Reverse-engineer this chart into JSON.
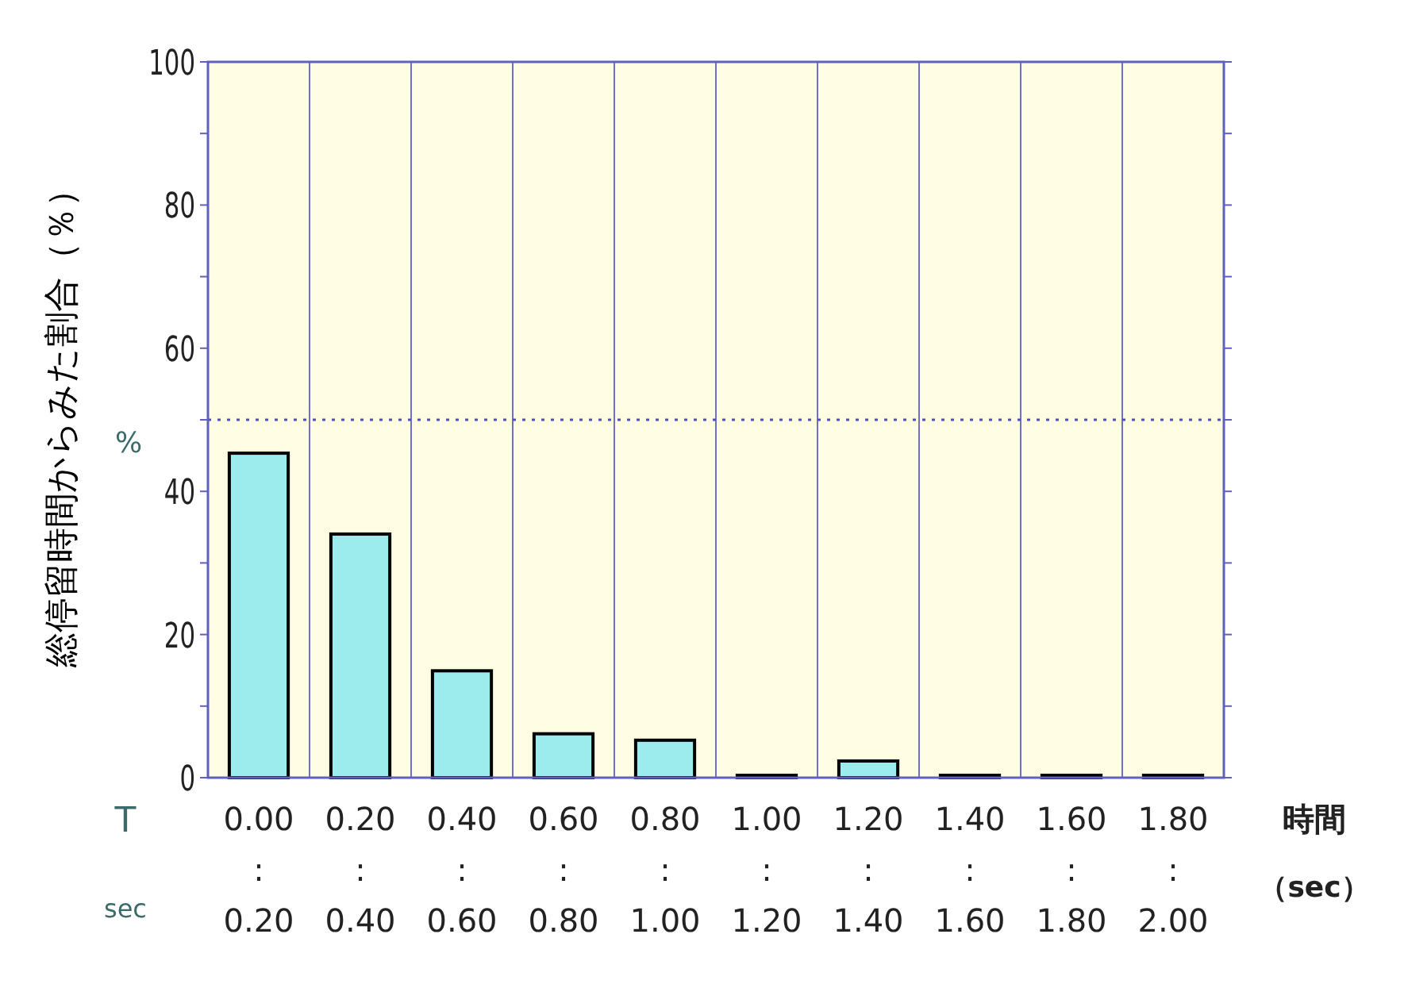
{
  "chart_data": {
    "type": "bar",
    "ylabel": "総停留時間からみた割合（％）",
    "xlabel": "時間",
    "categories": [
      "0.00 : 0.20",
      "0.20 : 0.40",
      "0.40 : 0.60",
      "0.60 : 0.80",
      "0.80 : 1.00",
      "1.00 : 1.20",
      "1.20 : 1.40",
      "1.40 : 1.60",
      "1.60 : 1.80",
      "1.80 : 2.00"
    ],
    "values": [
      45.0,
      33.7,
      14.6,
      5.8,
      4.9,
      0,
      2.0,
      0,
      0,
      0
    ],
    "color": "#9beded",
    "ylim": [
      0,
      100
    ],
    "yticks": [
      0,
      {
        "value": 10,
        "label": null
      },
      20,
      {
        "value": 30,
        "label": null
      },
      40,
      {
        "value": 50,
        "label": null
      },
      60,
      {
        "value": 70,
        "label": null
      },
      80,
      {
        "value": 90,
        "label": null
      },
      100
    ],
    "ref_lines": [
      {
        "axis": "y",
        "value": 50,
        "color": "#5050b0",
        "line_style": "dotted"
      }
    ],
    "grid": "x",
    "annotations": [
      "%",
      "T",
      "sec",
      "（sec）"
    ]
  }
}
